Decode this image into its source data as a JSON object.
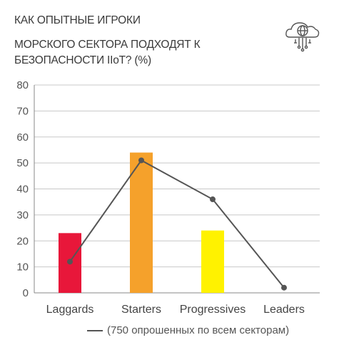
{
  "header": {
    "title_line1": "КАК ОПЫТНЫЕ ИГРОКИ",
    "title_line2": "МОРСКОГО СЕКТОРА ПОДХОДЯТ К",
    "title_line3": "БЕЗОПАСНОСТИ IIoT? (%)",
    "logo_icon": "cloud-network-icon"
  },
  "legend": {
    "text": "(750 опрошенных по всем секторам)"
  },
  "chart_data": {
    "type": "bar",
    "title": "КАК ОПЫТНЫЕ ИГРОКИ МОРСКОГО СЕКТОРА ПОДХОДЯТ К БЕЗОПАСНОСТИ IIoT? (%)",
    "categories": [
      "Laggards",
      "Starters",
      "Progressives",
      "Leaders"
    ],
    "series": [
      {
        "type": "bar",
        "values": [
          23,
          54,
          24,
          0
        ],
        "colors": [
          "#e8173a",
          "#f5a12b",
          "#fff200",
          "#ffffff"
        ]
      },
      {
        "type": "line",
        "name": "(750 опрошенных по всем секторам)",
        "values": [
          12,
          51,
          36,
          2
        ],
        "color": "#555555"
      }
    ],
    "yticks": [
      0,
      10,
      20,
      30,
      40,
      50,
      60,
      70,
      80
    ],
    "ylim": [
      0,
      80
    ],
    "grid": true,
    "legend_position": "bottom-right"
  }
}
